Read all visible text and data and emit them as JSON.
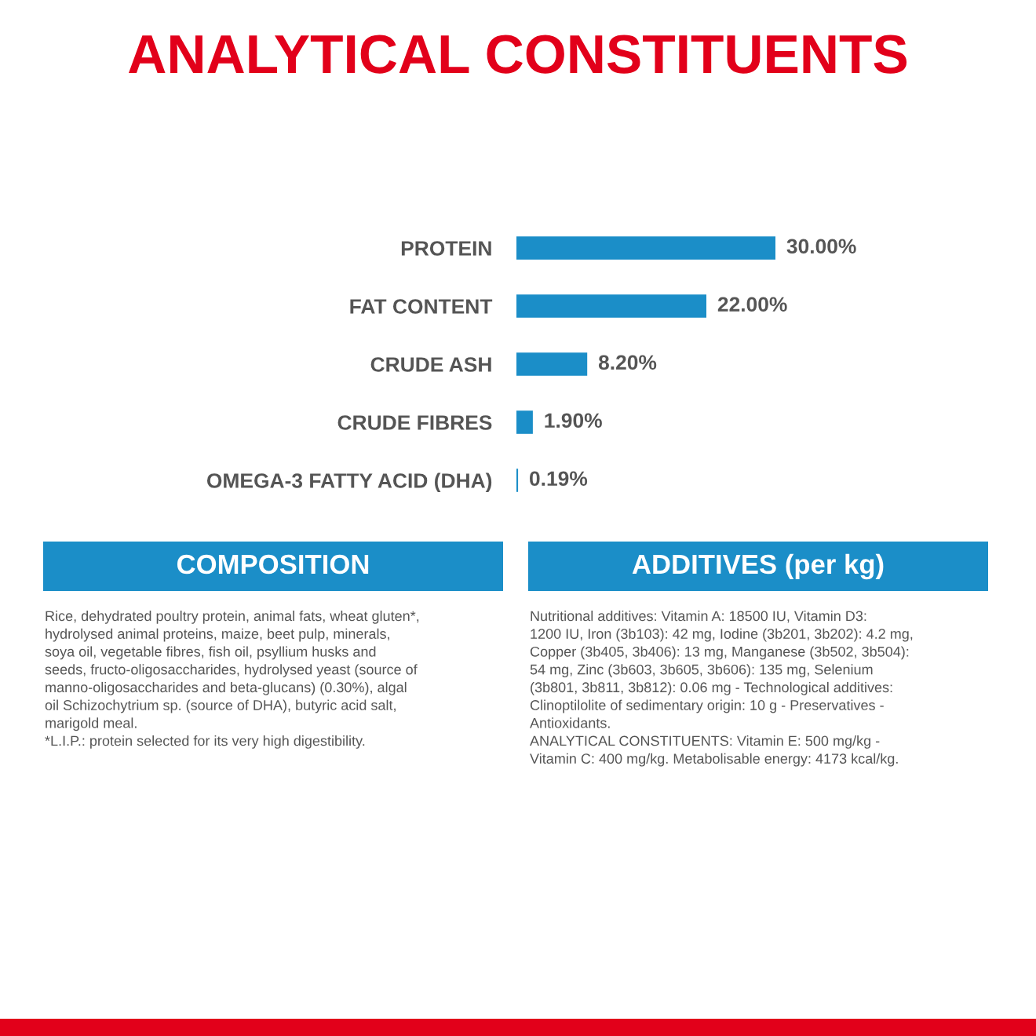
{
  "chart_data": {
    "type": "bar",
    "orientation": "horizontal",
    "title": "ANALYTICAL CONSTITUENTS",
    "categories": [
      "PROTEIN",
      "FAT CONTENT",
      "CRUDE ASH",
      "CRUDE FIBRES",
      "OMEGA-3 FATTY ACID (DHA)"
    ],
    "values": [
      30,
      22,
      8.2,
      1.9,
      0.19
    ],
    "value_labels": [
      "30.00%",
      "22.00%",
      "8.20%",
      "1.90%",
      "0.19%"
    ],
    "color": "#1b8ec8",
    "tick_labels": "y",
    "annotations": [
      "COMPOSITION",
      "Rice, dehydrated poultry protein, animal fats, wheat gluten*,\nhydrolysed animal proteins, maize, beet pulp, minerals,\nsoya oil, vegetable fibres, fish oil, psyllium husks and\nseeds, fructo-oligosaccharides, hydrolysed yeast (source of\nmanno-oligosaccharides and beta-glucans) (0.30%), algal\noil Schizochytrium sp. (source of DHA), butyric acid salt,\nmarigold meal.\n*L.I.P.: protein selected for its very high digestibility.",
      "ADDITIVES (per kg)",
      "Nutritional additives: Vitamin A: 18500 IU, Vitamin D3:\n1200 IU, Iron (3b103): 42 mg, Iodine (3b201, 3b202): 4.2 mg,\nCopper (3b405, 3b406): 13 mg, Manganese (3b502, 3b504):\n54 mg, Zinc (3b603, 3b605, 3b606): 135 mg, Selenium\n(3b801, 3b811, 3b812): 0.06 mg - Technological additives:\nClinoptilolite of sedimentary origin: 10 g - Preservatives -\nAntioxidants.\nANALYTICAL CONSTITUENTS: Vitamin E: 500 mg/kg -\nVitamin C: 400 mg/kg. Metabolisable energy: 4173 kcal/kg."
    ]
  }
}
